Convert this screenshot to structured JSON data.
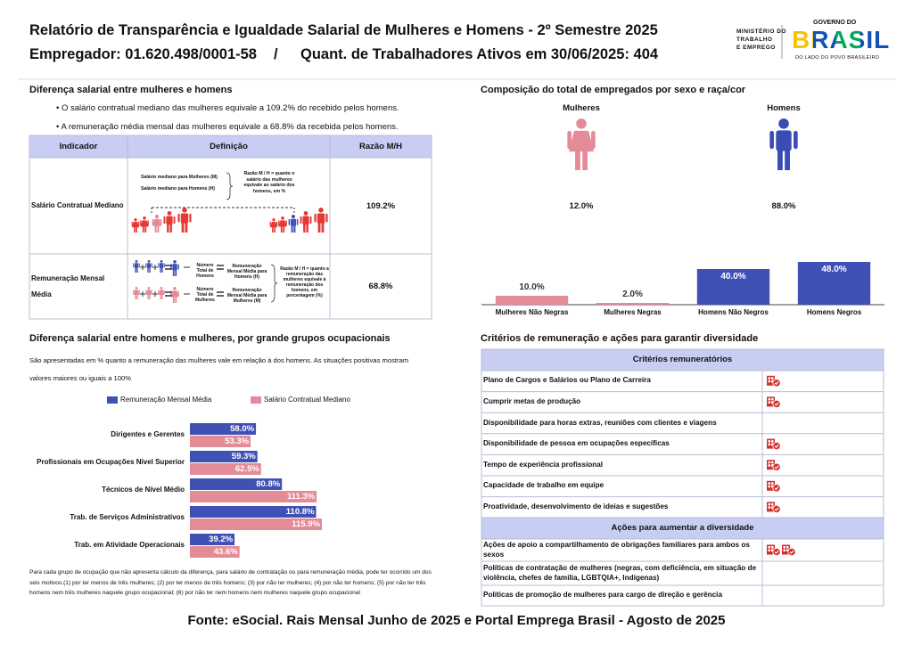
{
  "header": {
    "title": "Relatório de Transparência e Igualdade Salarial de Mulheres e Homens - 2º Semestre 2025",
    "employer": "Empregador: 01.620.498/0001-58",
    "separator": "/",
    "workers": "Quant. de Trabalhadores Ativos em 30/06/2025: 404"
  },
  "logos": {
    "ministry": [
      "MINISTÉRIO DO",
      "TRABALHO",
      "E EMPREGO"
    ],
    "gov_top": "GOVERNO DO",
    "gov_brand": "BRASIL",
    "gov_tagline": "DO LADO DO POVO BRASILEIRO"
  },
  "pay_gap": {
    "title": "Diferença salarial entre mulheres e homens",
    "bullets": [
      "• O salário contratual mediano das mulheres equivale a 109.2% do recebido pelos homens.",
      "• A remuneração média mensal das mulheres equivale a 68.8% da recebida pelos homens."
    ],
    "table": {
      "headers": [
        "Indicador",
        "Definição",
        "Razão M/H"
      ],
      "rows": [
        {
          "indicator": "Salário Contratual Mediano",
          "ratio": "109.2%",
          "diagram": [
            "Salário mediano para Mulheres (M)",
            "Salário mediano para Homens (H)",
            "Razão M / H = quanto o salário das mulheres equivale ao salário dos homens, em %"
          ]
        },
        {
          "indicator": "Remuneração Mensal Média",
          "ratio": "68.8%",
          "diagram": [
            "Número Total de Homens",
            "Remuneração Mensal Média para Homens (H)",
            "Número Total de Mulheres",
            "Remuneração Mensal Média para Mulheres (M)",
            "Razão M / H = quanto a remuneração das mulheres equivale à remuneração dos homens, em porcentagem (%)"
          ]
        }
      ]
    }
  },
  "composition": {
    "title": "Composição do total de empregados por sexo e raça/cor",
    "groups": [
      {
        "label": "Mulheres",
        "share": "12.0%",
        "color": "#e48b98"
      },
      {
        "label": "Homens",
        "share": "88.0%",
        "color": "#3a4db5"
      }
    ]
  },
  "chart_data": [
    {
      "type": "bar",
      "categories": [
        "Mulheres Não Negras",
        "Mulheres Negras",
        "Homens Não Negros",
        "Homens Negros"
      ],
      "values": [
        10.0,
        2.0,
        40.0,
        48.0
      ],
      "value_labels": [
        "10.0%",
        "2.0%",
        "40.0%",
        "48.0%"
      ],
      "colors": [
        "#e48b98",
        "#e48b98",
        "#3f51b5",
        "#3f51b5"
      ]
    },
    {
      "type": "hbar",
      "title": "Diferença salarial entre homens e mulheres, por grande grupos ocupacionais",
      "subtitle": "São apresentadas em % quanto a remuneração das mulheres vale em relação à dos homens. As situações positivas mostram valores maiores ou iguais a 100%",
      "categories": [
        "Dirigentes e Gerentes",
        "Profissionais em Ocupações Nível Superior",
        "Técnicos de Nível Médio",
        "Trab. de Serviços Administrativos",
        "Trab. em Atividade Operacionais"
      ],
      "series": [
        {
          "name": "Remuneração Mensal Média",
          "color": "#3f51b5",
          "values": [
            58.0,
            59.3,
            80.8,
            110.8,
            39.2
          ],
          "value_labels": [
            "58.0%",
            "59.3%",
            "80.8%",
            "110.8%",
            "39.2%"
          ]
        },
        {
          "name": "Salário Contratual Mediano",
          "color": "#e48b98",
          "values": [
            53.3,
            62.5,
            111.3,
            115.9,
            43.6
          ],
          "value_labels": [
            "53.3%",
            "62.5%",
            "111.3%",
            "115.9%",
            "43.6%"
          ]
        }
      ],
      "footnote": "Para cada grupo de ocupação que não apresenta cálculo da diferença, para salário de contratação ou para remuneração média, pode ter ocorrido um dos seis motivos:(1) por ter menos de três mulheres; (2) por ter menos de três homens; (3) por não ter mulheres; (4) por não ter homens; (5) por não ter três homens nem três mulheres naquele grupo ocupacional; (6) por não ter nem homens nem mulheres naquele grupo ocupacional"
    }
  ],
  "criteria": {
    "title": "Critérios de remuneração e ações para garantir diversidade",
    "criteria_header": "Critérios remuneratórios",
    "criteria_rows": [
      {
        "text": "Plano de Cargos e Salários ou Plano de Carreira",
        "icons": 1
      },
      {
        "text": "Cumprir metas de produção",
        "icons": 1
      },
      {
        "text": "Disponibilidade para horas extras, reuniões com clientes e viagens",
        "icons": 0
      },
      {
        "text": "Disponibilidade de pessoa em ocupações específicas",
        "icons": 1
      },
      {
        "text": "Tempo de experiência profissional",
        "icons": 1
      },
      {
        "text": "Capacidade de trabalho em equipe",
        "icons": 1
      },
      {
        "text": "Proatividade, desenvolvimento de ideias e sugestões",
        "icons": 1
      }
    ],
    "actions_header": "Ações para aumentar a diversidade",
    "action_rows": [
      {
        "text": "Ações de apoio a compartilhamento de obrigações familiares para ambos os sexos",
        "icons": 2
      },
      {
        "text": "Políticas de contratação de mulheres (negras, com deficiência, em situação de violência, chefes de família, LGBTQIA+, Indígenas)",
        "icons": 0
      },
      {
        "text": "Políticas de promoção de mulheres para cargo de direção e gerência",
        "icons": 0
      }
    ]
  },
  "footer": "Fonte: eSocial. Rais Mensal Junho de 2025 e Portal Emprega Brasil - Agosto de 2025"
}
